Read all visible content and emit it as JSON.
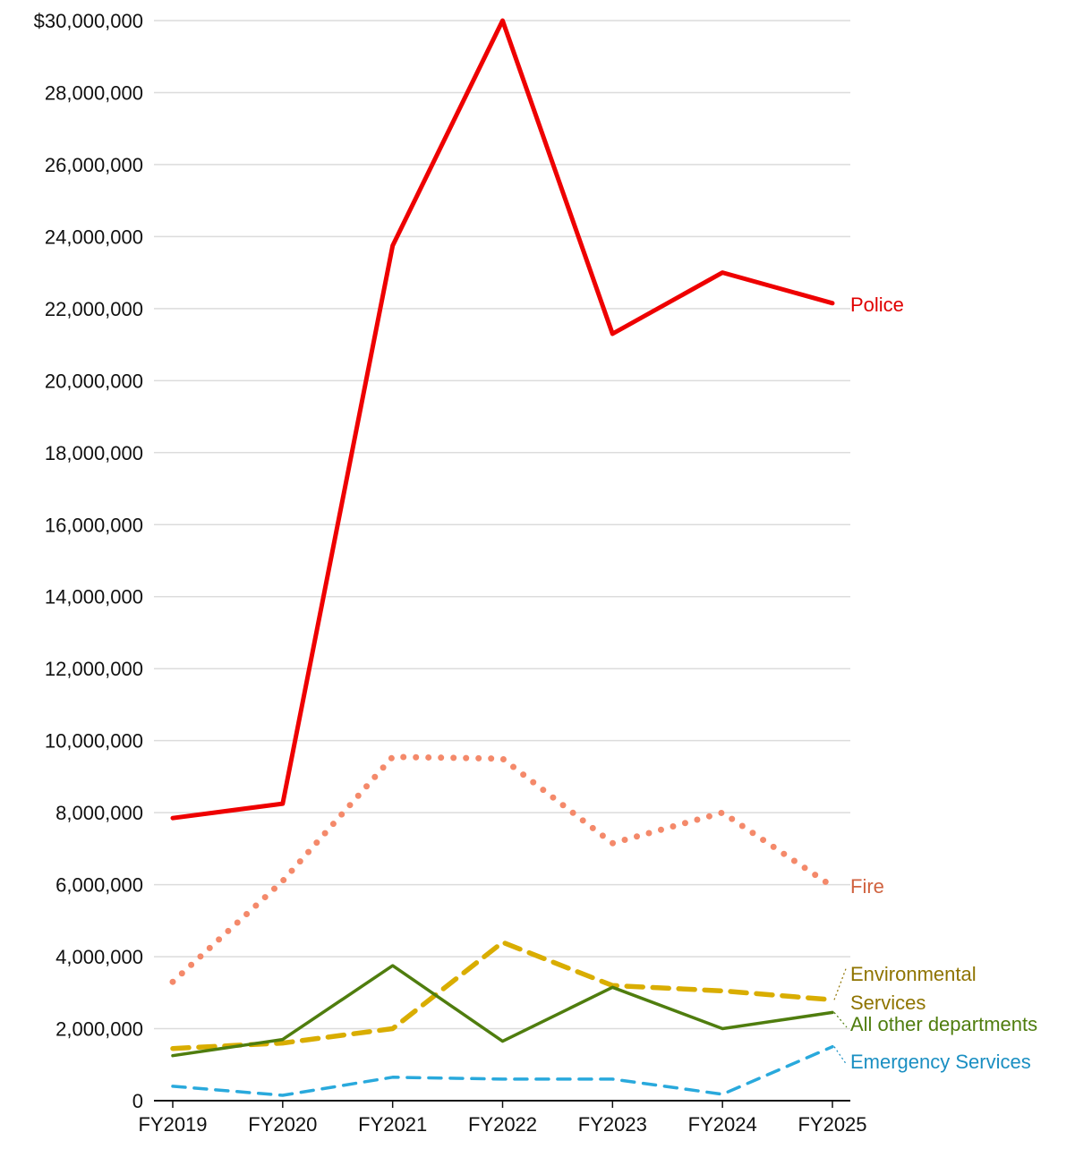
{
  "chart_data": {
    "type": "line",
    "title": "",
    "xlabel": "",
    "ylabel": "",
    "categories": [
      "FY2019",
      "FY2020",
      "FY2021",
      "FY2022",
      "FY2023",
      "FY2024",
      "FY2025"
    ],
    "ylim": [
      0,
      30000000
    ],
    "y_ticks": [
      {
        "value": 30000000,
        "label": "$30,000,000"
      },
      {
        "value": 28000000,
        "label": "28,000,000"
      },
      {
        "value": 26000000,
        "label": "26,000,000"
      },
      {
        "value": 24000000,
        "label": "24,000,000"
      },
      {
        "value": 22000000,
        "label": "22,000,000"
      },
      {
        "value": 20000000,
        "label": "20,000,000"
      },
      {
        "value": 18000000,
        "label": "18,000,000"
      },
      {
        "value": 16000000,
        "label": "16,000,000"
      },
      {
        "value": 14000000,
        "label": "14,000,000"
      },
      {
        "value": 12000000,
        "label": "12,000,000"
      },
      {
        "value": 10000000,
        "label": "10,000,000"
      },
      {
        "value": 8000000,
        "label": "8,000,000"
      },
      {
        "value": 6000000,
        "label": "6,000,000"
      },
      {
        "value": 4000000,
        "label": "4,000,000"
      },
      {
        "value": 2000000,
        "label": "2,000,000"
      },
      {
        "value": 0,
        "label": "0"
      }
    ],
    "grid": true,
    "series": [
      {
        "name": "Police",
        "label_lines": [
          "Police"
        ],
        "color": "#ee0000",
        "label_color": "#e00000",
        "style": "solid",
        "values": [
          7850000,
          8250000,
          23750000,
          30000000,
          21300000,
          23000000,
          22150000
        ]
      },
      {
        "name": "Fire",
        "label_lines": [
          "Fire"
        ],
        "color": "#f4896a",
        "label_color": "#d0623f",
        "style": "dotted",
        "values": [
          3300000,
          6100000,
          9550000,
          9500000,
          7150000,
          8000000,
          5950000
        ]
      },
      {
        "name": "Environmental Services",
        "label_lines": [
          "Environmental",
          "Services"
        ],
        "color": "#d9ad00",
        "label_color": "#8f7400",
        "style": "dashed",
        "values": [
          1450000,
          1600000,
          2000000,
          4400000,
          3200000,
          3050000,
          2800000
        ]
      },
      {
        "name": "All other departments",
        "label_lines": [
          "All other departments"
        ],
        "color": "#4f7d0e",
        "label_color": "#4f7d0e",
        "style": "solid-thin",
        "values": [
          1250000,
          1700000,
          3750000,
          1650000,
          3150000,
          2000000,
          2450000
        ]
      },
      {
        "name": "Emergency Services",
        "label_lines": [
          "Emergency Services"
        ],
        "color": "#29a9dc",
        "label_color": "#1a8fc2",
        "style": "dashed-thin",
        "values": [
          400000,
          150000,
          650000,
          600000,
          600000,
          180000,
          1500000
        ]
      }
    ]
  }
}
